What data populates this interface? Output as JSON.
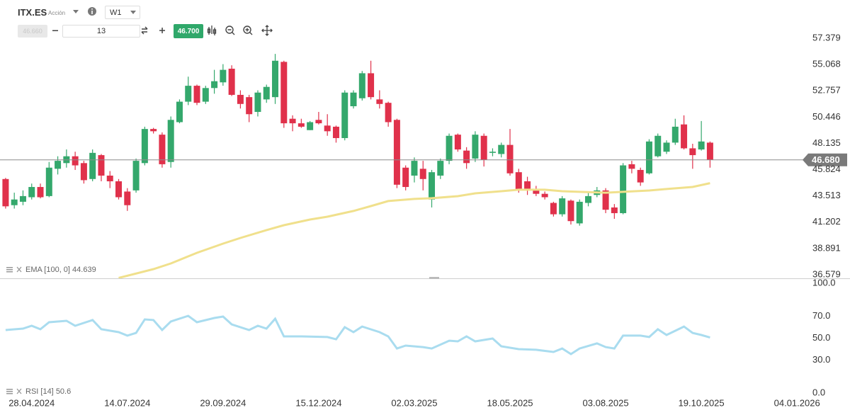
{
  "toolbar": {
    "symbol": "ITX.ES",
    "asset_type": "Acción",
    "timeframe": "W1",
    "sell_price": "46.660",
    "quantity": "13",
    "buy_price": "46.700"
  },
  "chart_data": [
    {
      "type": "candlestick",
      "x": [
        -3,
        -2,
        -1,
        0,
        1,
        2,
        3,
        4,
        5,
        6,
        7,
        8,
        9,
        10,
        11,
        12,
        13,
        14,
        15,
        16,
        17,
        18,
        19,
        20,
        21,
        22,
        23,
        24,
        25,
        26,
        27,
        28,
        29,
        30,
        31,
        32,
        33,
        34,
        35,
        36,
        37,
        38,
        39,
        40,
        41,
        42,
        43,
        44,
        45,
        46,
        47,
        48,
        49,
        50,
        51,
        52,
        53,
        54,
        55,
        56,
        57,
        58,
        59,
        60,
        61,
        62,
        63,
        64,
        65,
        66,
        67,
        68,
        69,
        70,
        71,
        72,
        73,
        74,
        75,
        76,
        77,
        78
      ],
      "open": [
        45.0,
        42.7,
        43.0,
        43.4,
        44.3,
        43.5,
        45.9,
        46.4,
        47.0,
        46.4,
        45.0,
        47.1,
        45.3,
        44.8,
        43.9,
        44.0,
        46.4,
        49.4,
        48.9,
        46.5,
        50.0,
        51.8,
        53.2,
        51.8,
        53.0,
        53.5,
        54.7,
        52.4,
        52.2,
        50.9,
        52.0,
        52.2,
        55.3,
        50.3,
        49.9,
        49.3,
        50.2,
        49.7,
        49.6,
        48.6,
        51.4,
        52.1,
        54.3,
        52.0,
        51.7,
        50.2,
        46.0,
        45.3,
        45.9,
        43.2,
        45.3,
        46.6,
        48.9,
        47.5,
        46.8,
        48.8,
        47.3,
        47.2,
        48.0,
        45.6,
        44.8,
        44.1,
        43.7,
        42.9,
        41.9,
        43.1,
        41.1,
        42.9,
        43.6,
        44.0,
        42.5,
        42.0,
        46.3,
        45.8,
        45.5,
        47.0,
        47.4,
        48.2,
        49.8,
        47.7,
        47.6,
        48.2
      ],
      "high": [
        45.1,
        43.8,
        44.0,
        44.6,
        44.6,
        46.5,
        47.0,
        47.6,
        47.4,
        46.6,
        47.6,
        47.2,
        45.7,
        45.0,
        44.2,
        46.8,
        49.6,
        49.5,
        49.1,
        50.5,
        52.0,
        54.0,
        53.3,
        53.2,
        54.6,
        55.1,
        55.0,
        52.8,
        52.4,
        52.8,
        53.3,
        56.0,
        55.4,
        50.6,
        50.3,
        50.1,
        50.9,
        50.7,
        49.7,
        52.8,
        52.8,
        54.5,
        55.4,
        52.8,
        51.8,
        50.3,
        46.2,
        46.9,
        46.6,
        45.8,
        46.8,
        49.0,
        49.0,
        47.8,
        49.2,
        49.0,
        47.7,
        48.2,
        49.4,
        45.9,
        45.2,
        44.4,
        43.9,
        43.0,
        43.5,
        43.2,
        43.2,
        43.8,
        44.3,
        44.2,
        42.8,
        46.4,
        46.6,
        46.0,
        48.5,
        49.0,
        48.4,
        50.3,
        50.6,
        48.1,
        50.1,
        48.3
      ],
      "low": [
        42.4,
        42.4,
        42.7,
        43.2,
        43.3,
        43.4,
        45.4,
        46.0,
        45.8,
        44.6,
        44.8,
        44.8,
        44.2,
        43.2,
        42.2,
        43.8,
        46.2,
        49.0,
        46.0,
        46.0,
        49.9,
        51.5,
        51.5,
        51.6,
        52.5,
        53.2,
        52.3,
        51.2,
        50.0,
        50.5,
        51.7,
        51.6,
        49.5,
        49.2,
        49.5,
        49.3,
        49.8,
        48.8,
        48.2,
        48.4,
        51.2,
        51.9,
        52.0,
        51.2,
        49.6,
        44.2,
        44.0,
        44.7,
        44.0,
        42.5,
        45.0,
        46.3,
        47.4,
        45.9,
        46.5,
        46.1,
        47.0,
        46.9,
        45.3,
        43.8,
        43.6,
        43.5,
        43.2,
        41.7,
        41.7,
        41.0,
        40.9,
        42.6,
        43.4,
        42.0,
        41.5,
        41.9,
        45.5,
        44.4,
        45.4,
        46.9,
        47.2,
        48.0,
        47.6,
        45.9,
        47.5,
        46.0
      ],
      "close": [
        42.6,
        43.2,
        43.5,
        44.3,
        43.4,
        46.0,
        46.6,
        47.0,
        46.2,
        44.9,
        47.3,
        45.3,
        44.8,
        43.4,
        42.7,
        46.6,
        49.4,
        49.2,
        46.3,
        50.2,
        51.8,
        53.2,
        51.7,
        53.0,
        53.6,
        54.6,
        52.4,
        51.6,
        50.7,
        52.6,
        53.1,
        55.4,
        49.9,
        49.9,
        49.6,
        50.0,
        49.9,
        49.2,
        48.6,
        52.6,
        52.6,
        54.3,
        52.2,
        51.6,
        50.0,
        44.5,
        44.3,
        46.6,
        45.0,
        45.6,
        46.6,
        48.8,
        47.6,
        46.4,
        48.9,
        46.7,
        47.4,
        48.0,
        45.5,
        44.1,
        44.1,
        43.7,
        43.4,
        41.9,
        43.3,
        41.3,
        43.0,
        43.5,
        44.0,
        42.3,
        42.0,
        46.2,
        45.9,
        44.7,
        48.3,
        48.8,
        48.2,
        49.6,
        47.7,
        47.1,
        48.3,
        46.7
      ],
      "up_color": "#34a86c",
      "down_color": "#e0314b",
      "xlim": [
        -3.4,
        88.8
      ],
      "ylim": [
        36.27,
        60.74
      ],
      "yticks": [
        57.379,
        55.068,
        52.757,
        50.446,
        48.135,
        45.824,
        43.513,
        41.202,
        38.891,
        36.579
      ],
      "last_price": {
        "value": 46.68,
        "label": "46.680"
      },
      "overlay": {
        "name": "EMA [100, 0]",
        "color": "#f0e08c",
        "x": [
          10,
          14,
          16,
          19,
          22,
          24,
          27,
          29,
          32,
          34,
          37,
          39,
          41,
          44,
          46,
          49,
          51,
          54,
          56,
          59,
          61,
          63,
          66,
          68,
          71,
          73,
          76,
          78
        ],
        "values": [
          36.3,
          37.08,
          37.58,
          38.51,
          39.32,
          39.82,
          40.51,
          40.94,
          41.44,
          41.69,
          42.19,
          42.62,
          43.06,
          43.25,
          43.31,
          43.49,
          43.74,
          43.93,
          44.06,
          44.06,
          43.93,
          43.87,
          43.8,
          43.87,
          43.99,
          44.12,
          44.3,
          44.639
        ]
      }
    },
    {
      "type": "line",
      "series": [
        {
          "name": "RSI [14]",
          "color": "#a9dcef",
          "x": [
            -3,
            -1,
            0,
            1,
            2,
            4,
            5,
            7,
            8,
            10,
            11,
            12,
            13,
            14,
            15,
            16,
            18,
            19,
            21,
            22,
            23,
            25,
            26,
            27,
            28,
            29,
            31,
            34,
            35,
            36,
            37,
            38,
            40,
            41,
            42,
            43,
            45,
            46,
            48,
            49,
            50,
            51,
            53,
            54,
            56,
            58,
            60,
            61,
            62,
            63,
            65,
            66,
            67,
            68,
            70,
            71,
            72,
            73,
            75,
            76,
            77,
            78
          ],
          "values": [
            57.4,
            58.7,
            61.3,
            58.1,
            64.5,
            65.8,
            61.3,
            66.5,
            58.1,
            55.5,
            52.3,
            54.8,
            67.1,
            66.5,
            57.4,
            65.2,
            70.3,
            64.5,
            68.4,
            69.7,
            62.6,
            57.4,
            61.3,
            58.7,
            67.7,
            51.6,
            51.6,
            51.0,
            49.0,
            60.0,
            55.5,
            60.6,
            55.5,
            51.6,
            40.6,
            43.2,
            41.9,
            40.6,
            47.7,
            47.1,
            51.6,
            47.1,
            49.7,
            42.6,
            40.0,
            39.4,
            37.4,
            40.6,
            35.5,
            40.6,
            45.2,
            41.9,
            40.6,
            52.3,
            52.3,
            51.0,
            58.1,
            52.9,
            60.6,
            54.8,
            52.9,
            50.6
          ]
        }
      ],
      "xlim": [
        -3.4,
        88.8
      ],
      "ylim": [
        0,
        100
      ],
      "yticks": [
        {
          "value": 100,
          "label": "100.0"
        },
        {
          "value": 70,
          "label": "70.0"
        },
        {
          "value": 50,
          "label": "50.0"
        },
        {
          "value": 30,
          "label": "30.0"
        },
        {
          "value": 0,
          "label": "0.0"
        }
      ],
      "xticks": [
        {
          "value": 0,
          "label": "28.04.2024"
        },
        {
          "value": 11,
          "label": "14.07.2024"
        },
        {
          "value": 22,
          "label": "29.09.2024"
        },
        {
          "value": 33,
          "label": "15.12.2024"
        },
        {
          "value": 44,
          "label": "02.03.2025"
        },
        {
          "value": 55,
          "label": "18.05.2025"
        },
        {
          "value": 66,
          "label": "03.08.2025"
        },
        {
          "value": 77,
          "label": "19.10.2025"
        },
        {
          "value": 88,
          "label": "04.01.2026"
        }
      ]
    }
  ]
}
